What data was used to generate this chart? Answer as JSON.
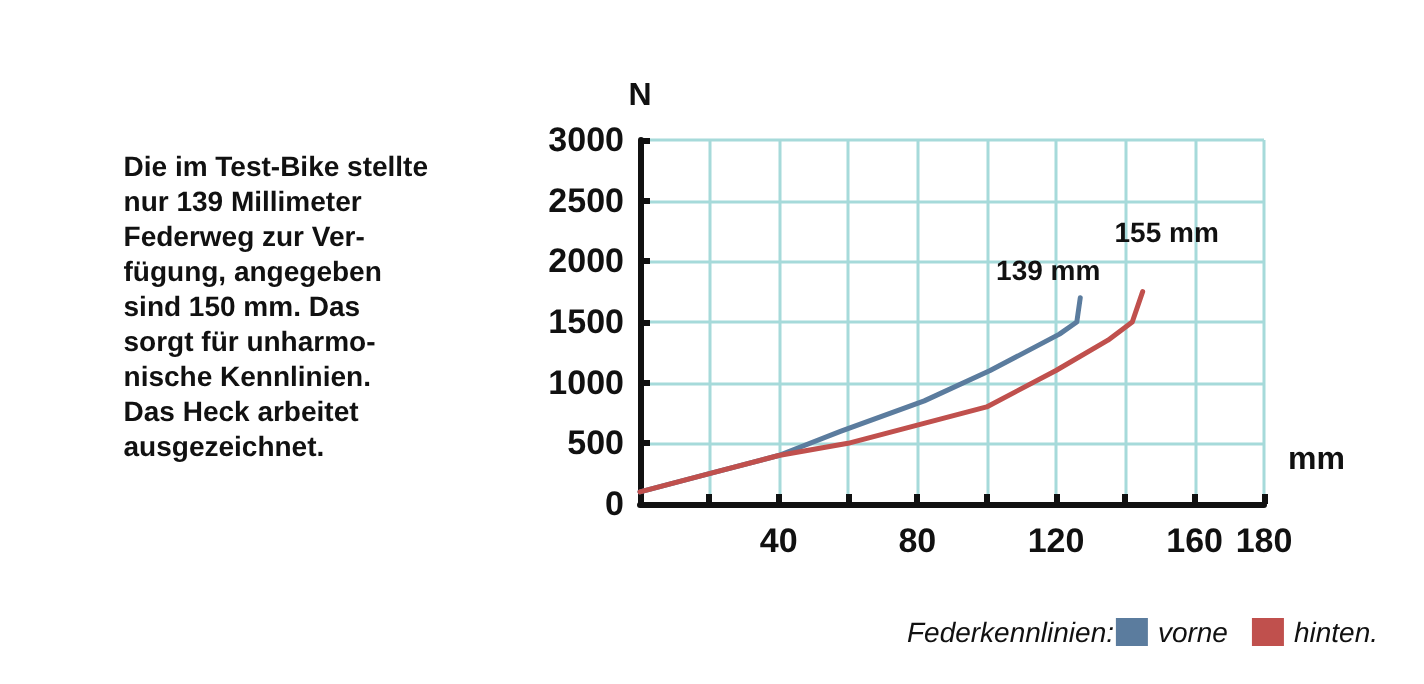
{
  "chart_data": {
    "type": "line",
    "xlabel": "mm",
    "ylabel": "N",
    "legend_title": "Federkennlinien:",
    "xlim": [
      0,
      180
    ],
    "xticks": [
      {
        "value": 20,
        "label": null
      },
      40,
      {
        "value": 60,
        "label": null
      },
      80,
      {
        "value": 100,
        "label": null
      },
      120,
      {
        "value": 140,
        "label": null
      },
      160,
      180
    ],
    "ylim": [
      0,
      3000
    ],
    "yticks": [
      0,
      500,
      1000,
      1500,
      2000,
      2500,
      3000
    ],
    "grid": true,
    "legend": "bottom right",
    "marker": "none",
    "line_style": "solid",
    "series": [
      {
        "name": "vorne",
        "color": "#5b7c9e",
        "x": [
          0,
          20,
          40,
          58,
          82,
          101,
          121,
          126,
          127
        ],
        "values": [
          100,
          250,
          400,
          600,
          850,
          1100,
          1400,
          1500,
          1700
        ]
      },
      {
        "name": "hinten.",
        "color": "#c0504d",
        "x": [
          0,
          20,
          40,
          60,
          80,
          100,
          120,
          135,
          142,
          145
        ],
        "values": [
          100,
          250,
          400,
          500,
          650,
          800,
          1100,
          1350,
          1500,
          1750
        ]
      }
    ],
    "annotations": [
      "Die im Test-Bike stellte\nnur 139 Millimeter\nFederweg zur Ver-\nfügung, angegeben\nsind 150 mm. Das\nsorgt für unharmo-\nnische Kennlinien.\nDas Heck arbeitet\nausgezeichnet.",
      {
        "text": "139 mm",
        "x": 127,
        "y": 1700
      },
      {
        "text": "155 mm",
        "x": 145,
        "y": 1750
      }
    ]
  }
}
